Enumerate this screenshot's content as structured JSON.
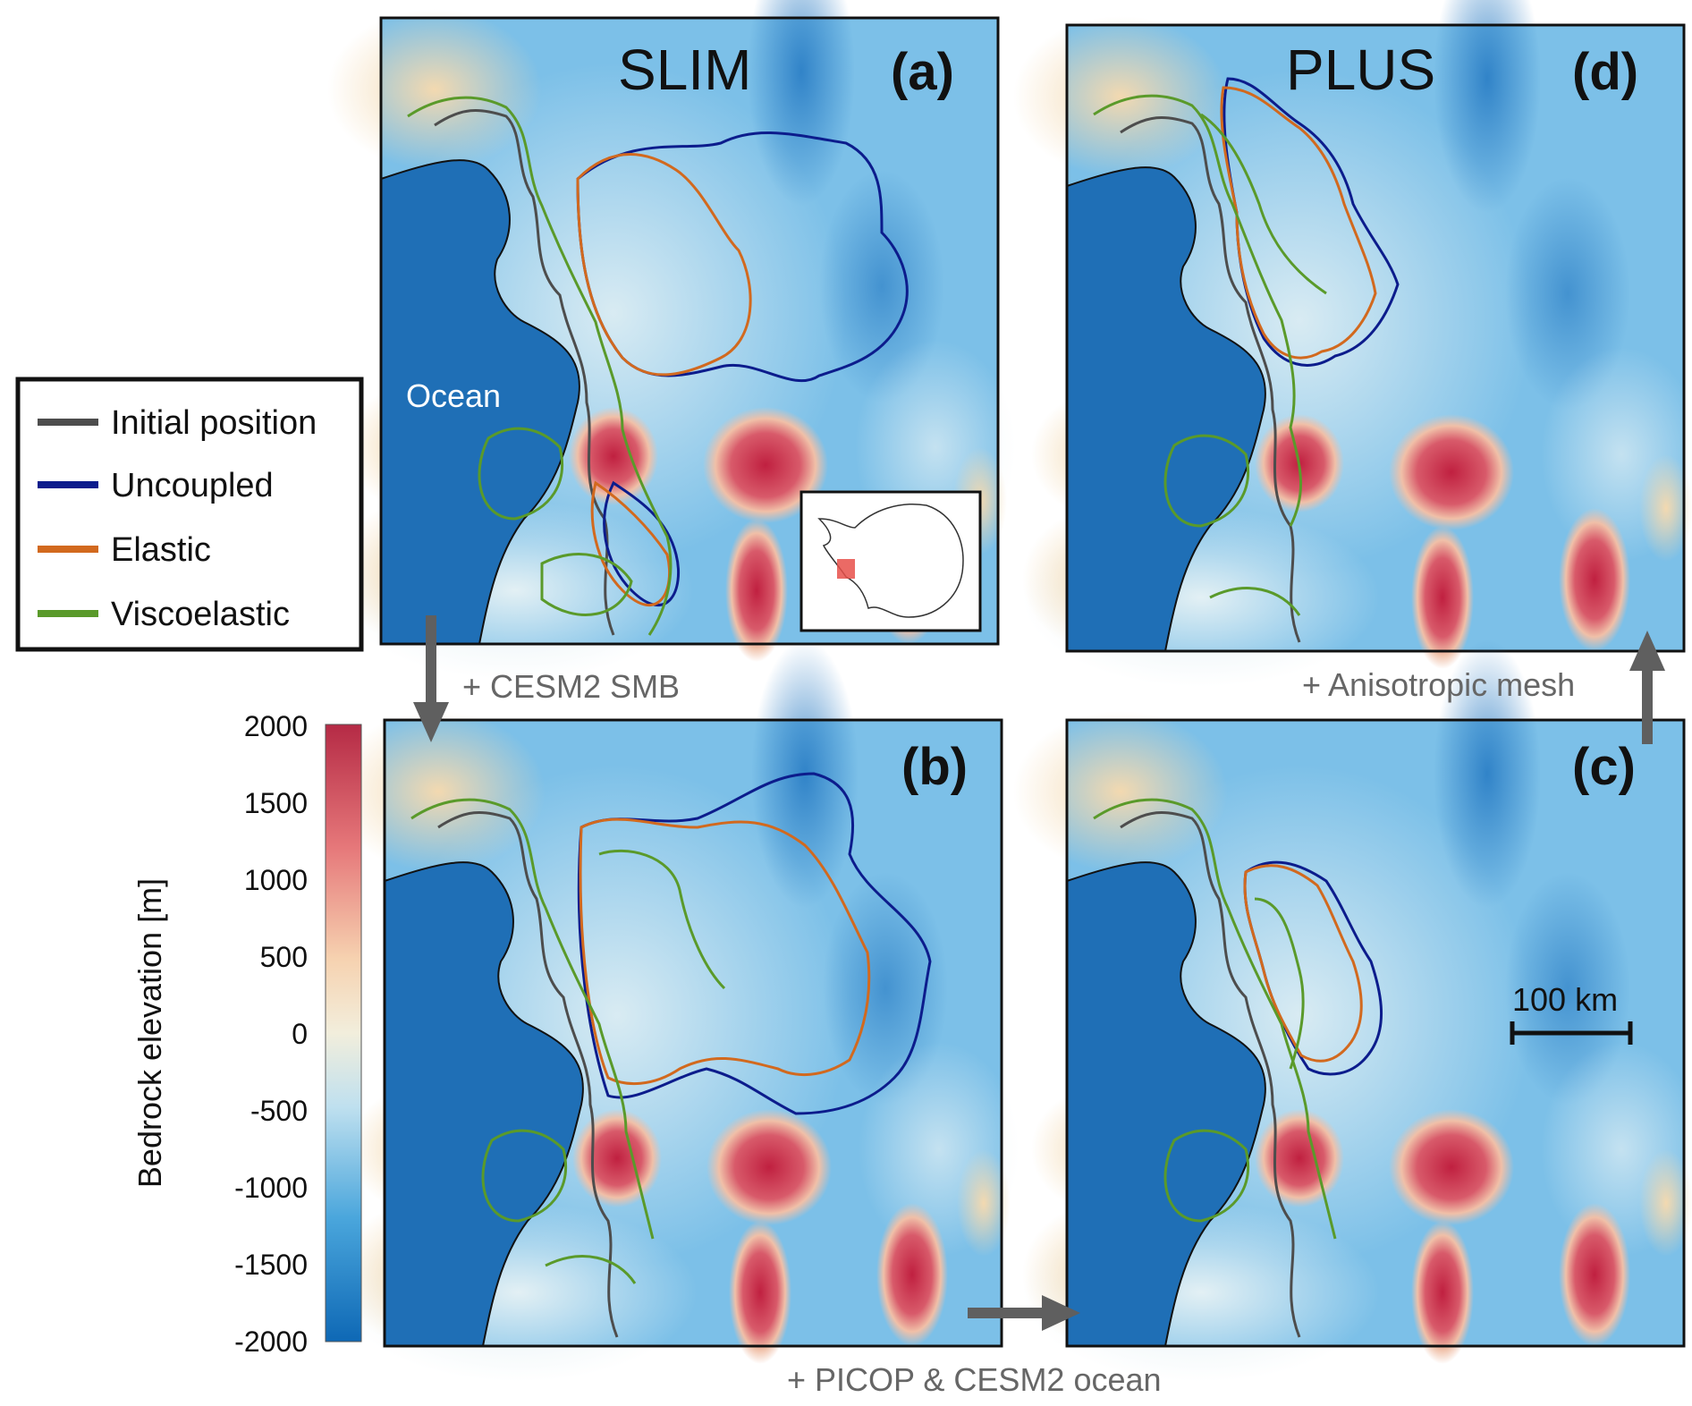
{
  "panels": {
    "a": {
      "title": "SLIM",
      "letter": "(a)",
      "ocean_label": "Ocean"
    },
    "b": {
      "letter": "(b)"
    },
    "c": {
      "letter": "(c)",
      "scale_bar": "100 km"
    },
    "d": {
      "title": "PLUS",
      "letter": "(d)"
    }
  },
  "legend": {
    "items": [
      {
        "label": "Initial position",
        "color": "#4d4d4d"
      },
      {
        "label": "Uncoupled",
        "color": "#0c1c8c"
      },
      {
        "label": "Elastic",
        "color": "#d2691e"
      },
      {
        "label": "Viscoelastic",
        "color": "#5a9a2a"
      }
    ]
  },
  "colorbar": {
    "label": "Bedrock elevation [m]",
    "ticks": [
      "2000",
      "1500",
      "1000",
      "500",
      "0",
      "-500",
      "-1000",
      "-1500",
      "-2000"
    ],
    "range": [
      -2000,
      2000
    ]
  },
  "steps": {
    "a_to_b": "+ CESM2 SMB",
    "b_to_c": "+ PICOP & CESM2 ocean",
    "c_to_d": "+ Anisotropic mesh"
  },
  "colors": {
    "ocean": "#1f6fb6",
    "land_low": "#9fd0ee",
    "land_mid": "#dceef6",
    "land_high": "#c8324a",
    "arrow": "#5f5f5f"
  }
}
